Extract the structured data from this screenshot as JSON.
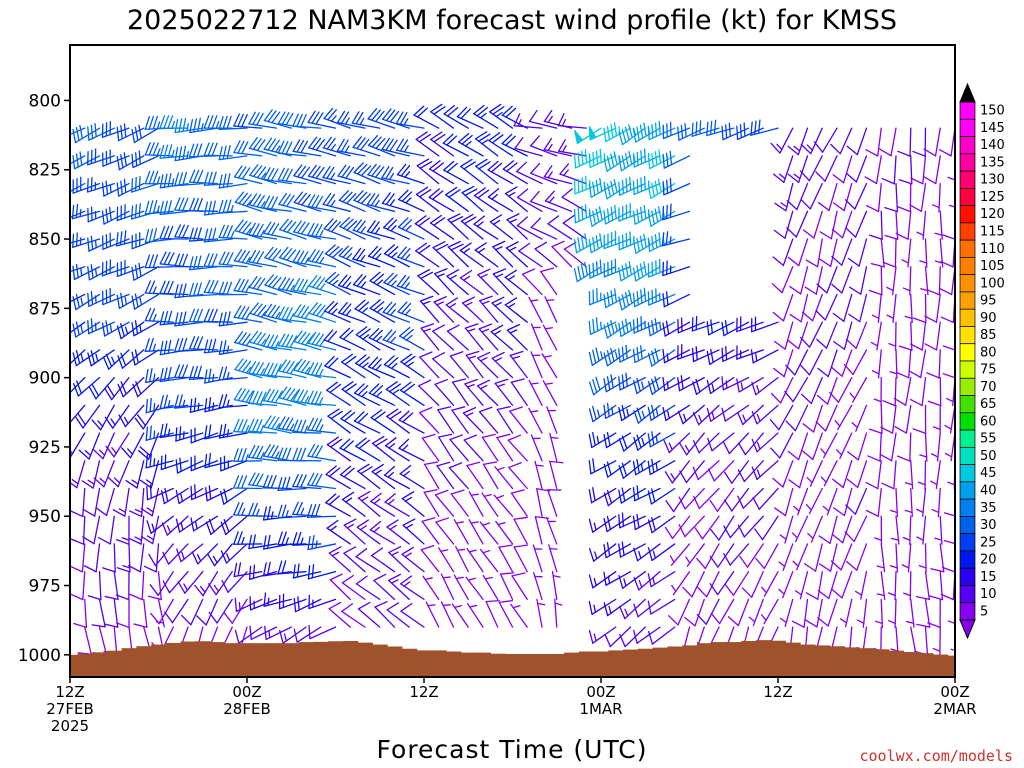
{
  "chart_data": {
    "type": "wind-barb-profile",
    "title": "2025022712 NAM3KM forecast wind profile (kt) for KMSS",
    "xlabel": "Forecast Time (UTC)",
    "ylabel": "",
    "credit": "coolwx.com/models",
    "y_axis": {
      "scale": "pressure-hPa-linear-inverted",
      "ylim": [
        1008,
        780
      ],
      "ticks": [
        800,
        825,
        850,
        875,
        900,
        925,
        950,
        975,
        1000
      ]
    },
    "x_axis": {
      "start": "2025-02-27T12Z",
      "end": "2025-03-02T00Z",
      "step_hours": 1,
      "ticks": [
        {
          "hour": 0,
          "lines": [
            "12Z",
            "27FEB",
            "2025"
          ]
        },
        {
          "hour": 12,
          "lines": [
            "00Z",
            "28FEB"
          ]
        },
        {
          "hour": 24,
          "lines": [
            "12Z"
          ]
        },
        {
          "hour": 36,
          "lines": [
            "00Z",
            "1MAR"
          ]
        },
        {
          "hour": 48,
          "lines": [
            "12Z"
          ]
        },
        {
          "hour": 60,
          "lines": [
            "00Z",
            "2MAR"
          ]
        }
      ]
    },
    "colorbar": {
      "levels": [
        5,
        10,
        15,
        20,
        25,
        30,
        35,
        40,
        45,
        50,
        55,
        60,
        65,
        70,
        75,
        80,
        85,
        90,
        95,
        100,
        105,
        110,
        115,
        120,
        125,
        130,
        135,
        140,
        145,
        150
      ],
      "colors": [
        "#8800ee",
        "#5500ee",
        "#2a00ee",
        "#0018ee",
        "#0040ee",
        "#0060ee",
        "#0080ee",
        "#00a0ee",
        "#00c8e0",
        "#00e0c0",
        "#00f090",
        "#00e000",
        "#44e000",
        "#99ee00",
        "#ccff00",
        "#ffff00",
        "#ffe000",
        "#ffc000",
        "#ffa000",
        "#ff9000",
        "#ff8000",
        "#ff7000",
        "#ff4000",
        "#ff1000",
        "#ff0040",
        "#ff0070",
        "#ff00a0",
        "#ff00c8",
        "#ff00f0",
        "#ff00ff"
      ],
      "over_color": "#000000",
      "under_color": "#8800ee"
    },
    "terrain": {
      "color": "#a0522d",
      "surface_pressure_hourly": [
        1000,
        999.6,
        999.1,
        998.5,
        997.6,
        996.9,
        996.3,
        995.7,
        995.2,
        995.1,
        995.4,
        995.8,
        995.8,
        995.8,
        995.8,
        995.8,
        995.4,
        995.3,
        995.1,
        995.0,
        995.6,
        996.3,
        997.0,
        997.8,
        998.4,
        998.4,
        998.8,
        999.2,
        999.2,
        999.6,
        999.7,
        999.7,
        999.7,
        999.7,
        999.2,
        998.8,
        998.8,
        998.4,
        998.1,
        997.8,
        997.4,
        997.0,
        996.6,
        995.8,
        995.4,
        995.4,
        995.0,
        994.7,
        994.9,
        995.6,
        996.3,
        996.6,
        996.9,
        997.3,
        997.6,
        998.0,
        998.5,
        999.0,
        999.4,
        999.9,
        1000.3
      ]
    },
    "barbs": {
      "levels_hPa": [
        810,
        820,
        830,
        840,
        850,
        860,
        870,
        880,
        890,
        900,
        910,
        920,
        930,
        940,
        950,
        960,
        970,
        980,
        990
      ],
      "units": "kt",
      "time_segments": [
        {
          "hours": [
            0,
            6
          ],
          "profile": [
            {
              "p": 810,
              "dir": 245,
              "spd": 30
            },
            {
              "p": 850,
              "dir": 250,
              "spd": 28
            },
            {
              "p": 880,
              "dir": 240,
              "spd": 25
            },
            {
              "p": 910,
              "dir": 215,
              "spd": 18
            },
            {
              "p": 940,
              "dir": 190,
              "spd": 13
            },
            {
              "p": 990,
              "dir": 170,
              "spd": 8
            }
          ]
        },
        {
          "hours": [
            7,
            12
          ],
          "profile": [
            {
              "p": 810,
              "dir": 265,
              "spd": 34
            },
            {
              "p": 860,
              "dir": 270,
              "spd": 30
            },
            {
              "p": 900,
              "dir": 265,
              "spd": 27
            },
            {
              "p": 930,
              "dir": 250,
              "spd": 22
            },
            {
              "p": 960,
              "dir": 225,
              "spd": 14
            },
            {
              "p": 990,
              "dir": 200,
              "spd": 8
            }
          ]
        },
        {
          "hours": [
            13,
            18
          ],
          "profile": [
            {
              "p": 810,
              "dir": 280,
              "spd": 30
            },
            {
              "p": 860,
              "dir": 285,
              "spd": 33
            },
            {
              "p": 910,
              "dir": 280,
              "spd": 38
            },
            {
              "p": 940,
              "dir": 272,
              "spd": 30
            },
            {
              "p": 970,
              "dir": 260,
              "spd": 20
            },
            {
              "p": 990,
              "dir": 240,
              "spd": 12
            }
          ]
        },
        {
          "hours": [
            19,
            24
          ],
          "profile": [
            {
              "p": 810,
              "dir": 285,
              "spd": 27
            },
            {
              "p": 860,
              "dir": 292,
              "spd": 26
            },
            {
              "p": 910,
              "dir": 300,
              "spd": 22
            },
            {
              "p": 950,
              "dir": 305,
              "spd": 16
            },
            {
              "p": 990,
              "dir": 310,
              "spd": 10
            }
          ]
        },
        {
          "hours": [
            25,
            31
          ],
          "profile": [
            {
              "p": 810,
              "dir": 300,
              "spd": 22
            },
            {
              "p": 860,
              "dir": 310,
              "spd": 17
            },
            {
              "p": 910,
              "dir": 320,
              "spd": 12
            },
            {
              "p": 950,
              "dir": 325,
              "spd": 8
            },
            {
              "p": 990,
              "dir": 330,
              "spd": 6
            }
          ]
        },
        {
          "hours": [
            32,
            35
          ],
          "profile": [
            {
              "p": 810,
              "dir": 280,
              "spd": 14
            },
            {
              "p": 850,
              "dir": 300,
              "spd": 10
            },
            {
              "p": 880,
              "dir": 330,
              "spd": 6
            },
            {
              "p": 930,
              "dir": 340,
              "spd": 6
            },
            {
              "p": 990,
              "dir": 350,
              "spd": 6
            }
          ]
        },
        {
          "hours": [
            36,
            41
          ],
          "profile": [
            {
              "p": 810,
              "dir": 240,
              "spd": 46
            },
            {
              "p": 850,
              "dir": 245,
              "spd": 42
            },
            {
              "p": 890,
              "dir": 240,
              "spd": 32
            },
            {
              "p": 920,
              "dir": 235,
              "spd": 24
            },
            {
              "p": 950,
              "dir": 240,
              "spd": 18
            },
            {
              "p": 990,
              "dir": 230,
              "spd": 12
            }
          ]
        },
        {
          "hours": [
            42,
            48
          ],
          "profile": [
            {
              "p": 810,
              "dir": 250,
              "spd": 30
            },
            {
              "p": 850,
              "dir": 250,
              "spd": 26
            },
            {
              "p": 890,
              "dir": 245,
              "spd": 18
            },
            {
              "p": 920,
              "dir": 225,
              "spd": 12
            },
            {
              "p": 960,
              "dir": 215,
              "spd": 9
            },
            {
              "p": 990,
              "dir": 200,
              "spd": 8
            }
          ]
        },
        {
          "hours": [
            49,
            54
          ],
          "profile": [
            {
              "p": 810,
              "dir": 205,
              "spd": 12
            },
            {
              "p": 850,
              "dir": 195,
              "spd": 10
            },
            {
              "p": 900,
              "dir": 205,
              "spd": 9
            },
            {
              "p": 950,
              "dir": 200,
              "spd": 8
            },
            {
              "p": 990,
              "dir": 190,
              "spd": 7
            }
          ]
        },
        {
          "hours": [
            55,
            60
          ],
          "profile": [
            {
              "p": 810,
              "dir": 185,
              "spd": 9
            },
            {
              "p": 850,
              "dir": 180,
              "spd": 8
            },
            {
              "p": 900,
              "dir": 185,
              "spd": 8
            },
            {
              "p": 950,
              "dir": 180,
              "spd": 7
            },
            {
              "p": 990,
              "dir": 175,
              "spd": 6
            }
          ]
        }
      ],
      "calm_gaps": [
        {
          "hours": [
            34,
            36
          ],
          "p_range": [
            870,
            990
          ]
        },
        {
          "hours": [
            43,
            48
          ],
          "p_range": [
            820,
            870
          ]
        }
      ]
    }
  }
}
